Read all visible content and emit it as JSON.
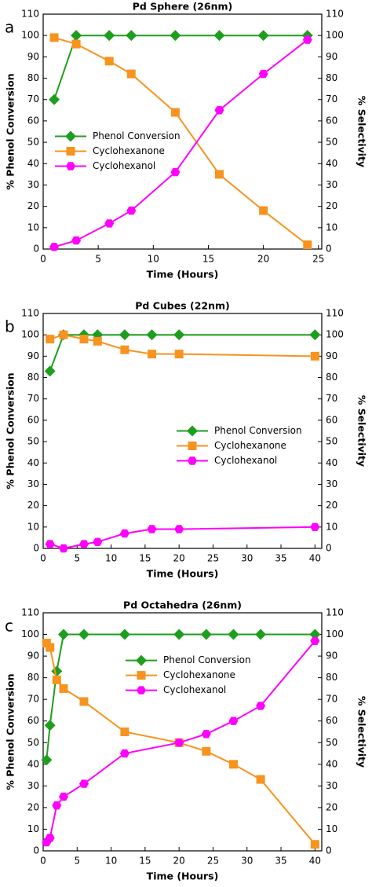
{
  "chart_data": [
    {
      "type": "line",
      "panel": "a",
      "title": "Pd Sphere (26nm)",
      "x_label": "Time (Hours)",
      "y_label": "% Phenol Conversion",
      "y2_label": "% Selectivity",
      "xlim": [
        0,
        25.3
      ],
      "xticks": [
        0,
        5,
        10,
        15,
        20,
        25
      ],
      "ylim": [
        0,
        110
      ],
      "yticks": [
        0,
        10,
        20,
        30,
        40,
        50,
        60,
        70,
        80,
        90,
        100,
        110
      ],
      "y2lim": [
        0,
        110
      ],
      "y2ticks": [
        0,
        10,
        20,
        30,
        40,
        50,
        60,
        70,
        80,
        90,
        100,
        110
      ],
      "legend": "center-left",
      "series": [
        {
          "name": "Phenol Conversion",
          "color": "#1e9e1e",
          "marker": "diamond",
          "x": [
            1,
            3,
            6,
            8,
            12,
            16,
            20,
            24
          ],
          "values": [
            70,
            100,
            100,
            100,
            100,
            100,
            100,
            100
          ]
        },
        {
          "name": "Cyclohexanone",
          "color": "#f7931e",
          "marker": "square",
          "axis": "y2",
          "x": [
            1,
            3,
            6,
            8,
            12,
            16,
            20,
            24
          ],
          "values": [
            99,
            96,
            88,
            82,
            64,
            35,
            18,
            2
          ]
        },
        {
          "name": "Cyclohexanol",
          "color": "#ff00ff",
          "marker": "hexagon",
          "axis": "y2",
          "x": [
            1,
            3,
            6,
            8,
            12,
            16,
            20,
            24
          ],
          "values": [
            1,
            4,
            12,
            18,
            36,
            65,
            82,
            98
          ]
        }
      ]
    },
    {
      "type": "line",
      "panel": "b",
      "title": "Pd Cubes (22nm)",
      "x_label": "Time (Hours)",
      "y_label": "% Phenol Conversion",
      "y2_label": "% Selectivity",
      "xlim": [
        0,
        41
      ],
      "xticks": [
        0,
        5,
        10,
        15,
        20,
        25,
        30,
        35,
        40
      ],
      "ylim": [
        0,
        110
      ],
      "yticks": [
        0,
        10,
        20,
        30,
        40,
        50,
        60,
        70,
        80,
        90,
        100,
        110
      ],
      "y2lim": [
        0,
        110
      ],
      "y2ticks": [
        0,
        10,
        20,
        30,
        40,
        50,
        60,
        70,
        80,
        90,
        100,
        110
      ],
      "legend": "center-right",
      "series": [
        {
          "name": "Phenol Conversion",
          "color": "#1e9e1e",
          "marker": "diamond",
          "x": [
            1,
            3,
            6,
            8,
            12,
            16,
            20,
            40
          ],
          "values": [
            83,
            100,
            100,
            100,
            100,
            100,
            100,
            100
          ]
        },
        {
          "name": "Cyclohexanone",
          "color": "#f7931e",
          "marker": "square",
          "axis": "y2",
          "x": [
            1,
            3,
            6,
            8,
            12,
            16,
            20,
            40
          ],
          "values": [
            98,
            100,
            98,
            97,
            93,
            91,
            91,
            90
          ]
        },
        {
          "name": "Cyclohexanol",
          "color": "#ff00ff",
          "marker": "hexagon",
          "axis": "y2",
          "x": [
            1,
            3,
            6,
            8,
            12,
            16,
            20,
            40
          ],
          "values": [
            2,
            0,
            2,
            3,
            7,
            9,
            9,
            10
          ]
        }
      ]
    },
    {
      "type": "line",
      "panel": "c",
      "title": "Pd Octahedra (26nm)",
      "x_label": "Time (Hours)",
      "y_label": "% Phenol Conversion",
      "y2_label": "% Selectivity",
      "xlim": [
        0,
        41
      ],
      "xticks": [
        0,
        5,
        10,
        15,
        20,
        25,
        30,
        35,
        40
      ],
      "ylim": [
        0,
        110
      ],
      "yticks": [
        0,
        10,
        20,
        30,
        40,
        50,
        60,
        70,
        80,
        90,
        100,
        110
      ],
      "y2lim": [
        0,
        110
      ],
      "y2ticks": [
        0,
        10,
        20,
        30,
        40,
        50,
        60,
        70,
        80,
        90,
        100,
        110
      ],
      "legend": "upper-center",
      "series": [
        {
          "name": "Phenol Conversion",
          "color": "#1e9e1e",
          "marker": "diamond",
          "x": [
            0.5,
            1,
            2,
            3,
            6,
            12,
            20,
            24,
            28,
            32,
            40
          ],
          "values": [
            42,
            58,
            83,
            100,
            100,
            100,
            100,
            100,
            100,
            100,
            100
          ]
        },
        {
          "name": "Cyclohexanone",
          "color": "#f7931e",
          "marker": "square",
          "axis": "y2",
          "x": [
            0.5,
            1,
            2,
            3,
            6,
            12,
            20,
            24,
            28,
            32,
            40
          ],
          "values": [
            96,
            94,
            79,
            75,
            69,
            55,
            50,
            46,
            40,
            33,
            3
          ]
        },
        {
          "name": "Cyclohexanol",
          "color": "#ff00ff",
          "marker": "hexagon",
          "axis": "y2",
          "x": [
            0.5,
            1,
            2,
            3,
            6,
            12,
            20,
            24,
            28,
            32,
            40
          ],
          "values": [
            4,
            6,
            21,
            25,
            31,
            45,
            50,
            54,
            60,
            67,
            97
          ]
        }
      ]
    }
  ]
}
